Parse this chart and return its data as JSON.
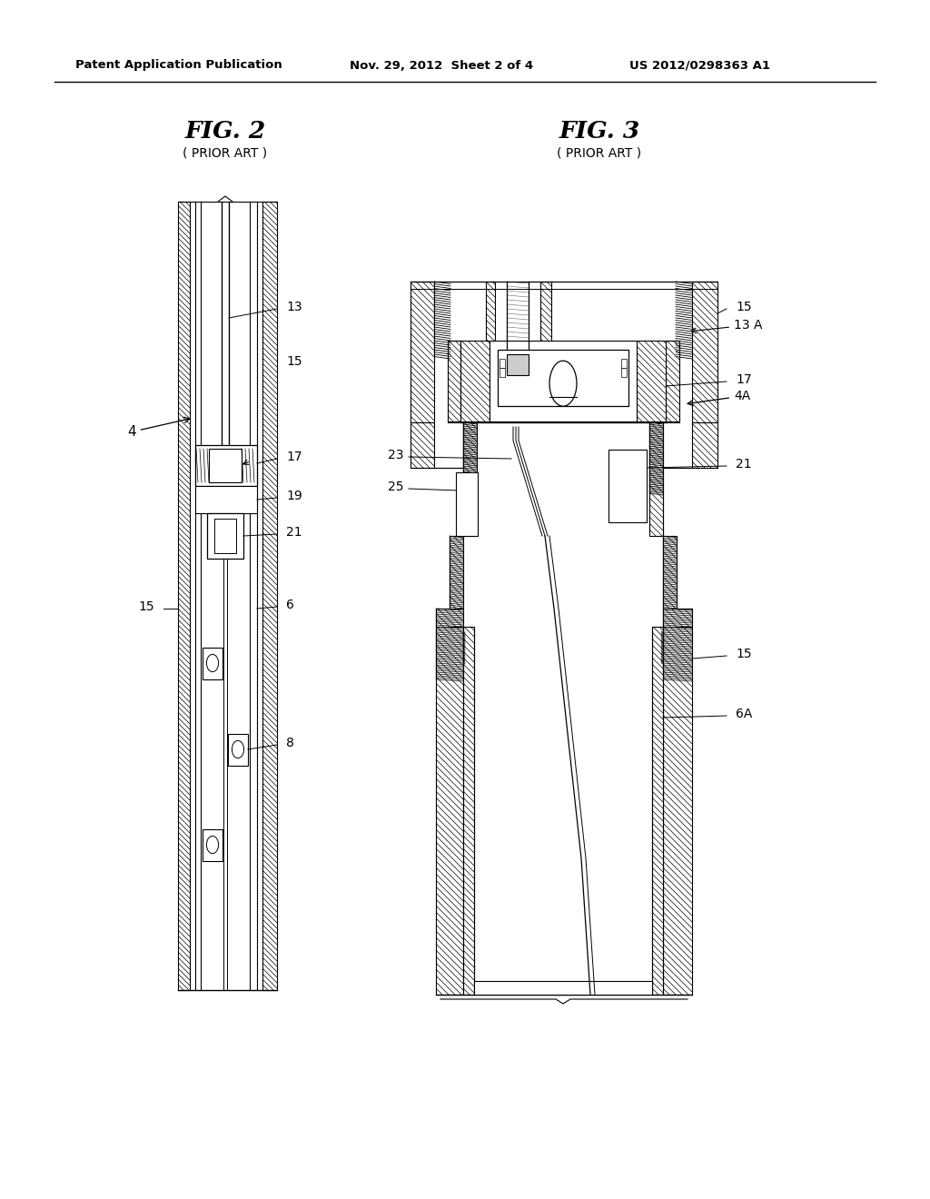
{
  "header_left": "Patent Application Publication",
  "header_mid": "Nov. 29, 2012  Sheet 2 of 4",
  "header_right": "US 2012/0298363 A1",
  "fig2_title": "FIG. 2",
  "fig2_subtitle": "( PRIOR ART )",
  "fig3_title": "FIG. 3",
  "fig3_subtitle": "( PRIOR ART )",
  "bg_color": "#ffffff",
  "line_color": "#000000"
}
